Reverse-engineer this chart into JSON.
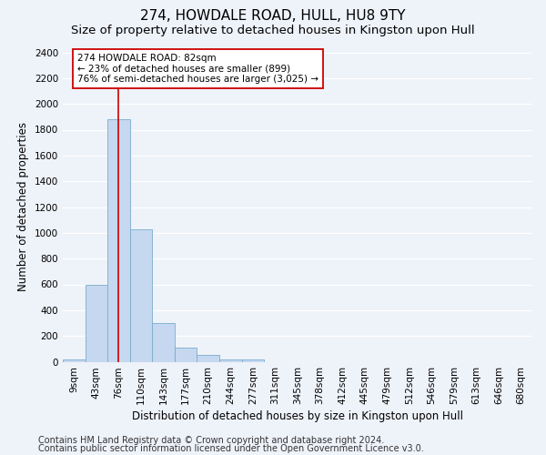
{
  "title": "274, HOWDALE ROAD, HULL, HU8 9TY",
  "subtitle": "Size of property relative to detached houses in Kingston upon Hull",
  "xlabel": "Distribution of detached houses by size in Kingston upon Hull",
  "ylabel": "Number of detached properties",
  "bin_labels": [
    "9sqm",
    "43sqm",
    "76sqm",
    "110sqm",
    "143sqm",
    "177sqm",
    "210sqm",
    "244sqm",
    "277sqm",
    "311sqm",
    "345sqm",
    "378sqm",
    "412sqm",
    "445sqm",
    "479sqm",
    "512sqm",
    "546sqm",
    "579sqm",
    "613sqm",
    "646sqm",
    "680sqm"
  ],
  "bar_heights": [
    20,
    600,
    1880,
    1025,
    300,
    110,
    50,
    20,
    20,
    0,
    0,
    0,
    0,
    0,
    0,
    0,
    0,
    0,
    0,
    0,
    0
  ],
  "bar_color": "#c5d8ef",
  "bar_edge_color": "#7aacce",
  "ylim": [
    0,
    2400
  ],
  "yticks": [
    0,
    200,
    400,
    600,
    800,
    1000,
    1200,
    1400,
    1600,
    1800,
    2000,
    2200,
    2400
  ],
  "property_bin_index": 2,
  "annotation_title": "274 HOWDALE ROAD: 82sqm",
  "annotation_line1": "← 23% of detached houses are smaller (899)",
  "annotation_line2": "76% of semi-detached houses are larger (3,025) →",
  "vline_color": "#cc0000",
  "annotation_box_color": "#ffffff",
  "annotation_box_edge": "#cc0000",
  "footer1": "Contains HM Land Registry data © Crown copyright and database right 2024.",
  "footer2": "Contains public sector information licensed under the Open Government Licence v3.0.",
  "background_color": "#eef2f9",
  "grid_color": "#ffffff",
  "title_fontsize": 11,
  "subtitle_fontsize": 9.5,
  "axis_label_fontsize": 8.5,
  "tick_fontsize": 7.5,
  "footer_fontsize": 7
}
